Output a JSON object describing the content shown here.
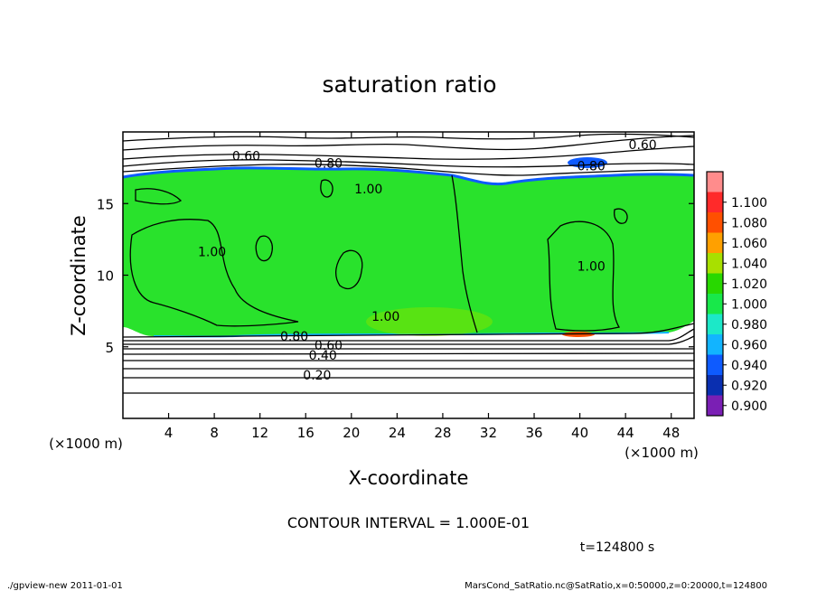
{
  "chart_data": {
    "type": "heatmap",
    "title": "saturation ratio",
    "xlabel": "X-coordinate",
    "ylabel": "Z-coordinate",
    "xlabel_unit_left": "(×1000 m)",
    "xlabel_unit_right": "(×1000 m)",
    "xlim": [
      0,
      50
    ],
    "ylim": [
      0,
      20
    ],
    "x_ticks": [
      4,
      8,
      12,
      16,
      20,
      24,
      28,
      32,
      36,
      40,
      44,
      48
    ],
    "y_ticks": [
      5,
      10,
      15
    ],
    "colorbar_levels": [
      "0.900",
      "0.920",
      "0.940",
      "0.960",
      "0.980",
      "1.000",
      "1.020",
      "1.040",
      "1.060",
      "1.080",
      "1.100"
    ],
    "colorbar_colors": [
      "#7a1fb4",
      "#0a2fb0",
      "#0e5bff",
      "#12b4ff",
      "#1ce8c8",
      "#18e84a",
      "#28d800",
      "#a8e000",
      "#ffa000",
      "#ff5000",
      "#ff2a2a",
      "#ff8c8c"
    ],
    "field_color": "#29e22c",
    "contour_labels": [
      {
        "text": "0.60",
        "x": 10.8,
        "z": 18.2
      },
      {
        "text": "0.80",
        "x": 18.0,
        "z": 17.7
      },
      {
        "text": "0.60",
        "x": 45.5,
        "z": 19.0
      },
      {
        "text": "0.80",
        "x": 41.0,
        "z": 17.5
      },
      {
        "text": "1.00",
        "x": 21.5,
        "z": 15.9
      },
      {
        "text": "1.00",
        "x": 7.8,
        "z": 11.5
      },
      {
        "text": "1.00",
        "x": 23.0,
        "z": 7.0
      },
      {
        "text": "1.00",
        "x": 41.0,
        "z": 10.5
      },
      {
        "text": "0.80",
        "x": 15.0,
        "z": 5.6
      },
      {
        "text": "0.60",
        "x": 18.0,
        "z": 5.0
      },
      {
        "text": "0.40",
        "x": 17.5,
        "z": 4.3
      },
      {
        "text": "0.20",
        "x": 17.0,
        "z": 2.9
      }
    ],
    "contour_interval_text": "CONTOUR INTERVAL = 1.000E-01",
    "time_text": "t=124800 s"
  },
  "footer": {
    "left": "./gpview-new   2011-01-01",
    "right": "MarsCond_SatRatio.nc@SatRatio,x=0:50000,z=0:20000,t=124800"
  }
}
